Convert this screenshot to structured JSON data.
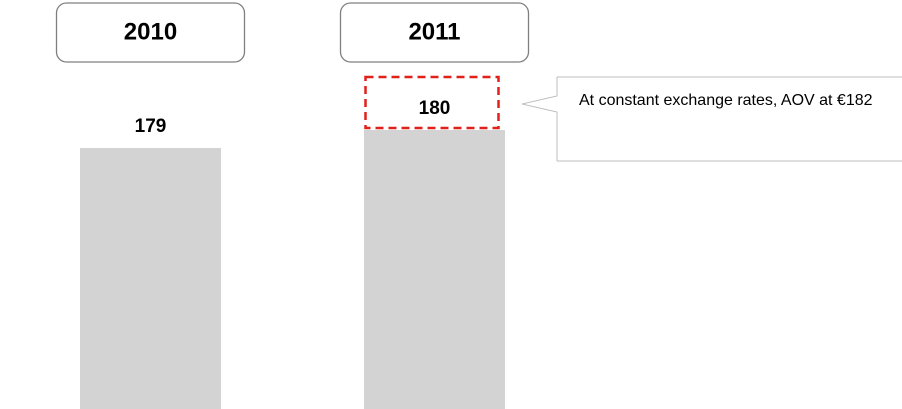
{
  "chart_data": {
    "type": "bar",
    "categories": [
      "2010",
      "2011"
    ],
    "values": [
      179,
      180
    ],
    "color": "#d3d3d3",
    "ylim": [
      164.5,
      185
    ],
    "annotation": "At constant exchange rates, AOV at €182",
    "highlight_color": "#e0201b"
  }
}
